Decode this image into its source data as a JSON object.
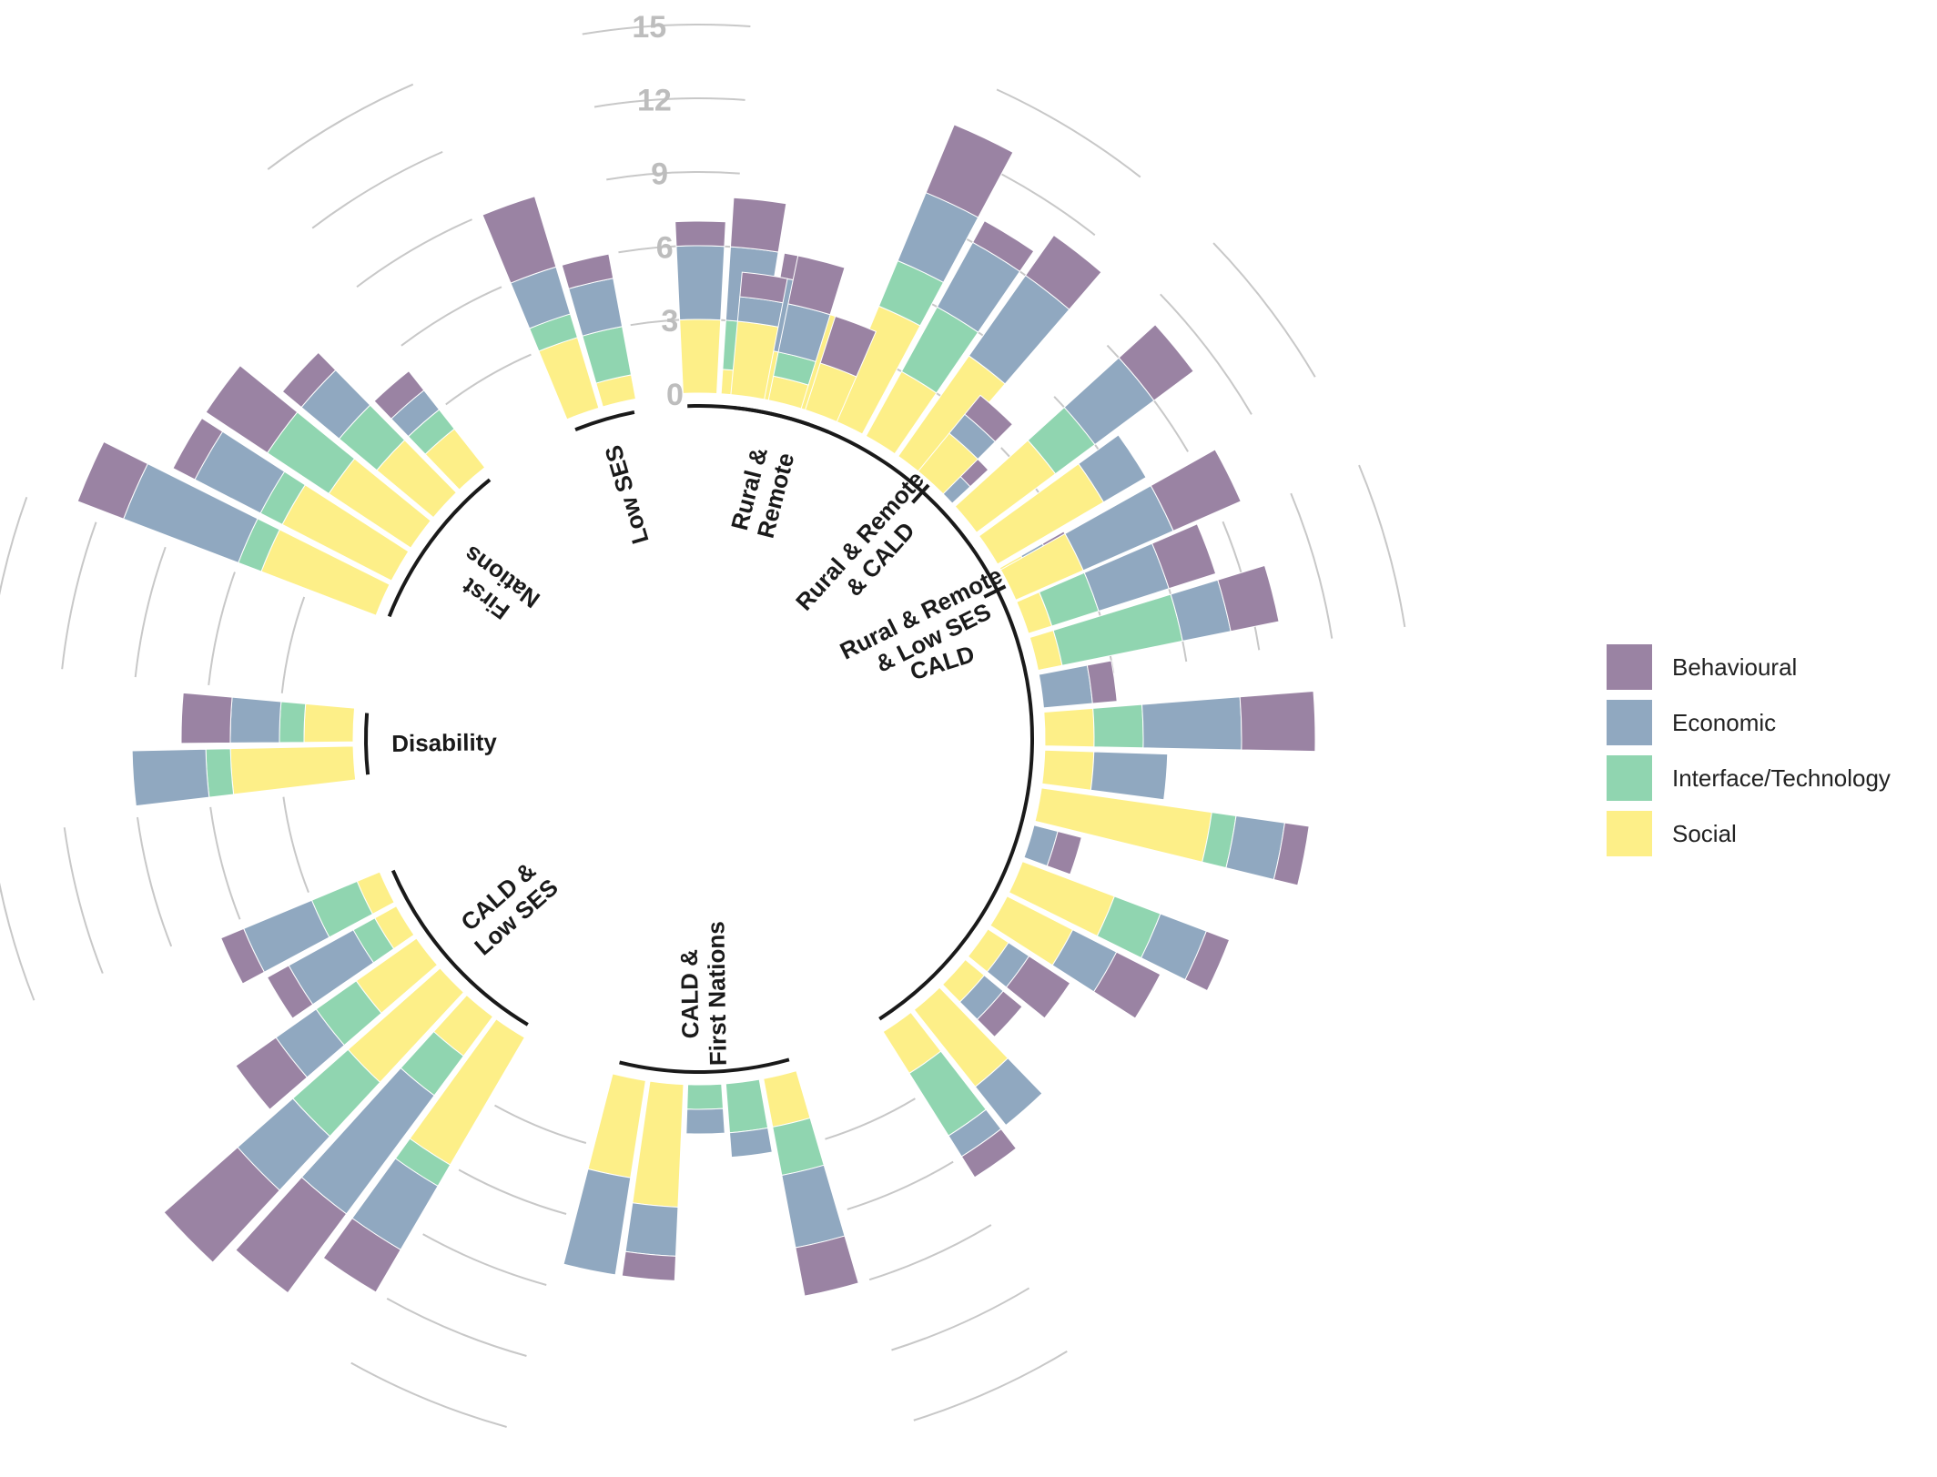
{
  "chart_data": {
    "type": "bar",
    "subtype": "circular-stacked-bar",
    "title": "",
    "xlabel": "",
    "ylabel": "",
    "ylim": [
      0,
      15
    ],
    "yticks": [
      "0",
      "3",
      "6",
      "9",
      "12",
      "15"
    ],
    "grid": true,
    "legend_position": "right",
    "series": [
      {
        "name": "Behavioural",
        "color": "#9a83a3"
      },
      {
        "name": "Economic",
        "color": "#90a8c0"
      },
      {
        "name": "Interface/Technology",
        "color": "#90d5b0"
      },
      {
        "name": "Social",
        "color": "#fdef88"
      }
    ],
    "groups": [
      {
        "label": [
          "CALD"
        ],
        "bars": [
          {
            "Behavioural": 1,
            "Economic": 3,
            "Interface/Technology": 0,
            "Social": 3
          },
          {
            "Behavioural": 2,
            "Economic": 3,
            "Interface/Technology": 2,
            "Social": 1
          },
          {
            "Behavioural": 1,
            "Economic": 3,
            "Interface/Technology": 0,
            "Social": 2
          },
          {
            "Behavioural": 0,
            "Economic": 0,
            "Interface/Technology": 0,
            "Social": 4
          },
          {
            "Behavioural": 3,
            "Economic": 3,
            "Interface/Technology": 2,
            "Social": 5
          },
          {
            "Behavioural": 1,
            "Economic": 3,
            "Interface/Technology": 3,
            "Social": 3
          },
          {
            "Behavioural": 2,
            "Economic": 4,
            "Interface/Technology": 0,
            "Social": 5
          },
          {
            "Behavioural": 1,
            "Economic": 1,
            "Interface/Technology": 0,
            "Social": 0
          },
          {
            "Behavioural": 2,
            "Economic": 3,
            "Interface/Technology": 2,
            "Social": 4
          },
          {
            "Behavioural": 0,
            "Economic": 2,
            "Interface/Technology": 0,
            "Social": 5
          },
          {
            "Behavioural": 1,
            "Economic": 1,
            "Interface/Technology": 0,
            "Social": 1
          },
          {
            "Behavioural": 2,
            "Economic": 3,
            "Interface/Technology": 2,
            "Social": 1
          },
          {
            "Behavioural": 2,
            "Economic": 2,
            "Interface/Technology": 5,
            "Social": 1
          },
          {
            "Behavioural": 1,
            "Economic": 2,
            "Interface/Technology": 0,
            "Social": 0
          },
          {
            "Behavioural": 3,
            "Economic": 4,
            "Interface/Technology": 2,
            "Social": 2
          },
          {
            "Behavioural": 0,
            "Economic": 3,
            "Interface/Technology": 0,
            "Social": 2
          },
          {
            "Behavioural": 1,
            "Economic": 2,
            "Interface/Technology": 1,
            "Social": 7
          },
          {
            "Behavioural": 1,
            "Economic": 1,
            "Interface/Technology": 0,
            "Social": 0
          },
          {
            "Behavioural": 1,
            "Economic": 2,
            "Interface/Technology": 2,
            "Social": 4
          },
          {
            "Behavioural": 2,
            "Economic": 2,
            "Interface/Technology": 0,
            "Social": 3
          },
          {
            "Behavioural": 2,
            "Economic": 1,
            "Interface/Technology": 0,
            "Social": 1
          },
          {
            "Behavioural": 1,
            "Economic": 1,
            "Interface/Technology": 0,
            "Social": 1
          },
          {
            "Behavioural": 0,
            "Economic": 2,
            "Interface/Technology": 0,
            "Social": 4
          },
          {
            "Behavioural": 1,
            "Economic": 1,
            "Interface/Technology": 3,
            "Social": 2
          }
        ]
      },
      {
        "label": [
          "CALD &",
          "First Nations"
        ],
        "bars": [
          {
            "Behavioural": 2,
            "Economic": 3,
            "Interface/Technology": 2,
            "Social": 2
          },
          {
            "Behavioural": 0,
            "Economic": 1,
            "Interface/Technology": 2,
            "Social": 0
          },
          {
            "Behavioural": 0,
            "Economic": 1,
            "Interface/Technology": 1,
            "Social": 0
          },
          {
            "Behavioural": 1,
            "Economic": 2,
            "Interface/Technology": 0,
            "Social": 5
          },
          {
            "Behavioural": 0,
            "Economic": 4,
            "Interface/Technology": 0,
            "Social": 4
          }
        ]
      },
      {
        "label": [
          "CALD &",
          "Low SES"
        ],
        "bars": [
          {
            "Behavioural": 2,
            "Economic": 3,
            "Interface/Technology": 1,
            "Social": 6
          },
          {
            "Behavioural": 4,
            "Economic": 6,
            "Interface/Technology": 2,
            "Social": 2
          },
          {
            "Behavioural": 4,
            "Economic": 3,
            "Interface/Technology": 3,
            "Social": 5
          },
          {
            "Behavioural": 2,
            "Economic": 2,
            "Interface/Technology": 2,
            "Social": 3
          },
          {
            "Behavioural": 1,
            "Economic": 3,
            "Interface/Technology": 1,
            "Social": 1
          },
          {
            "Behavioural": 1,
            "Economic": 3,
            "Interface/Technology": 2,
            "Social": 1
          }
        ]
      },
      {
        "label": [
          "Disability"
        ],
        "bars": [
          {
            "Behavioural": 0,
            "Economic": 3,
            "Interface/Technology": 1,
            "Social": 5
          },
          {
            "Behavioural": 2,
            "Economic": 2,
            "Interface/Technology": 1,
            "Social": 2
          }
        ]
      },
      {
        "label": [
          "First",
          "Nations"
        ],
        "bars": [
          {
            "Behavioural": 2,
            "Economic": 5,
            "Interface/Technology": 1,
            "Social": 5
          },
          {
            "Behavioural": 1,
            "Economic": 3,
            "Interface/Technology": 1,
            "Social": 5
          },
          {
            "Behavioural": 3,
            "Economic": 0,
            "Interface/Technology": 3,
            "Social": 4
          },
          {
            "Behavioural": 1,
            "Economic": 2,
            "Interface/Technology": 2,
            "Social": 3
          },
          {
            "Behavioural": 1,
            "Economic": 1,
            "Interface/Technology": 1,
            "Social": 2
          }
        ]
      },
      {
        "label": [
          "Low SES"
        ],
        "bars": [
          {
            "Behavioural": 3,
            "Economic": 2,
            "Interface/Technology": 1,
            "Social": 3
          },
          {
            "Behavioural": 1,
            "Economic": 2,
            "Interface/Technology": 2,
            "Social": 1
          }
        ]
      },
      {
        "label": [
          "Rural &",
          "Remote"
        ],
        "bars": [
          {
            "Behavioural": 1,
            "Economic": 1,
            "Interface/Technology": 0,
            "Social": 3
          },
          {
            "Behavioural": 2,
            "Economic": 2,
            "Interface/Technology": 1,
            "Social": 1
          },
          {
            "Behavioural": 2,
            "Economic": 0,
            "Interface/Technology": 0,
            "Social": 2
          }
        ]
      },
      {
        "label": [
          "Rural & Remote",
          "& CALD"
        ],
        "bars": [
          {
            "Behavioural": 1,
            "Economic": 1,
            "Interface/Technology": 0,
            "Social": 2
          }
        ]
      },
      {
        "label": [
          "Rural & Remote",
          "& Low SES"
        ],
        "bars": [
          {
            "Behavioural": 3,
            "Economic": 4,
            "Interface/Technology": 0,
            "Social": 3
          }
        ]
      }
    ]
  }
}
